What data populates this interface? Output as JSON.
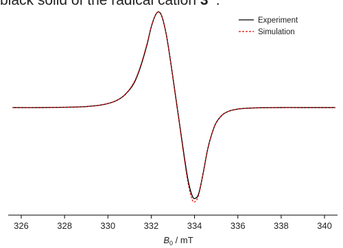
{
  "caption": {
    "text_before": "black solid of the radical cation ",
    "compound": "3",
    "superscript": "•+",
    "text_after": "."
  },
  "chart_data": {
    "type": "line",
    "xlabel_italic": "B",
    "xlabel_sub": "0",
    "xlabel_rest": " / mT",
    "xlim": [
      325.4,
      340.6
    ],
    "ylim": [
      -1.0,
      1.0
    ],
    "xticks": [
      326,
      328,
      330,
      332,
      334,
      336,
      338,
      340
    ],
    "legend_position": "top-right",
    "grid": false,
    "series": [
      {
        "name": "Experiment",
        "color": "#000000",
        "style": "solid",
        "x": [
          325.6,
          327,
          328,
          329,
          329.8,
          330.4,
          330.8,
          331.2,
          331.5,
          331.8,
          332.0,
          332.2,
          332.35,
          332.5,
          332.7,
          332.9,
          333.1,
          333.3,
          333.5,
          333.7,
          333.9,
          334.05,
          334.2,
          334.4,
          334.6,
          334.8,
          335.0,
          335.3,
          335.6,
          336.0,
          336.5,
          337.0,
          338.0,
          339.0,
          340.5
        ],
        "values": [
          0.0,
          0.0,
          0.003,
          0.01,
          0.03,
          0.07,
          0.13,
          0.24,
          0.4,
          0.62,
          0.8,
          0.92,
          0.95,
          0.9,
          0.72,
          0.45,
          0.15,
          -0.15,
          -0.45,
          -0.72,
          -0.88,
          -0.9,
          -0.85,
          -0.65,
          -0.42,
          -0.26,
          -0.15,
          -0.07,
          -0.035,
          -0.015,
          -0.006,
          -0.002,
          0.0,
          0.0,
          0.0
        ]
      },
      {
        "name": "Simulation",
        "color": "#e00000",
        "style": "dashed",
        "x": [
          325.6,
          327,
          328,
          329,
          329.8,
          330.4,
          330.8,
          331.2,
          331.5,
          331.8,
          332.0,
          332.2,
          332.35,
          332.5,
          332.7,
          332.9,
          333.1,
          333.3,
          333.5,
          333.7,
          333.9,
          334.05,
          334.2,
          334.4,
          334.6,
          334.8,
          335.0,
          335.3,
          335.6,
          336.0,
          336.5,
          337.0,
          338.0,
          339.0,
          340.5
        ],
        "values": [
          0.0,
          0.0,
          0.003,
          0.01,
          0.03,
          0.07,
          0.13,
          0.25,
          0.41,
          0.63,
          0.8,
          0.92,
          0.95,
          0.9,
          0.72,
          0.45,
          0.14,
          -0.16,
          -0.47,
          -0.75,
          -0.92,
          -0.93,
          -0.86,
          -0.65,
          -0.42,
          -0.26,
          -0.15,
          -0.07,
          -0.035,
          -0.015,
          -0.006,
          -0.002,
          0.0,
          0.0,
          0.0
        ]
      }
    ]
  }
}
